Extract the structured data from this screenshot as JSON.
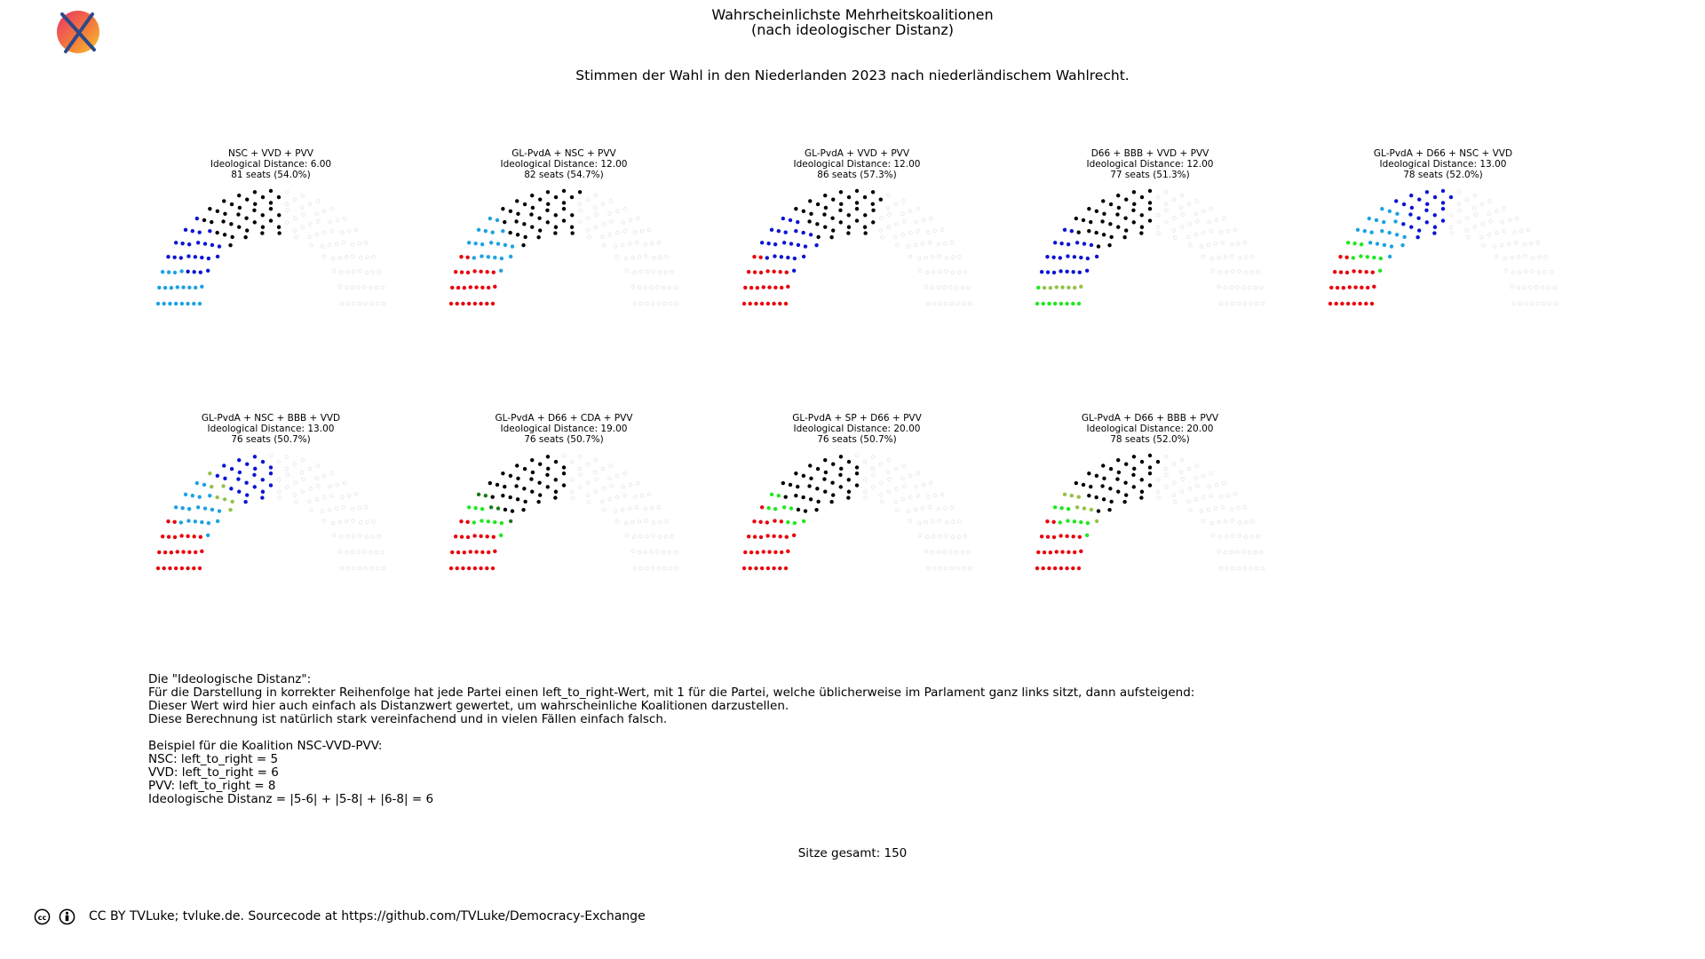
{
  "header": {
    "title_line1": "Wahrscheinlichste Mehrheitskoalitionen",
    "title_line2": "(nach ideologischer Distanz)",
    "subtitle": "Stimmen der Wahl in den Niederlanden 2023 nach niederländischem Wahlrecht."
  },
  "chart_data": [
    {
      "type": "parliament",
      "title": "NSC + VVD + PVV",
      "distance_label": "Ideological Distance: 6.00",
      "seats_label": "81 seats (54.0%)",
      "segments": [
        {
          "party": "NSC",
          "seats": 20,
          "color": "#1ca2e2"
        },
        {
          "party": "VVD",
          "seats": 24,
          "color": "#0a14d2"
        },
        {
          "party": "PVV",
          "seats": 37,
          "color": "#000000"
        }
      ]
    },
    {
      "type": "parliament",
      "title": "GL-PvdA + NSC + PVV",
      "distance_label": "Ideological Distance: 12.00",
      "seats_label": "82 seats (54.7%)",
      "segments": [
        {
          "party": "GL-PvdA",
          "seats": 25,
          "color": "#e8000b"
        },
        {
          "party": "NSC",
          "seats": 20,
          "color": "#1ca2e2"
        },
        {
          "party": "PVV",
          "seats": 37,
          "color": "#000000"
        }
      ]
    },
    {
      "type": "parliament",
      "title": "GL-PvdA + VVD + PVV",
      "distance_label": "Ideological Distance: 12.00",
      "seats_label": "86 seats (57.3%)",
      "segments": [
        {
          "party": "GL-PvdA",
          "seats": 25,
          "color": "#e8000b"
        },
        {
          "party": "VVD",
          "seats": 24,
          "color": "#0a14d2"
        },
        {
          "party": "PVV",
          "seats": 37,
          "color": "#000000"
        }
      ]
    },
    {
      "type": "parliament",
      "title": "D66 + BBB + VVD + PVV",
      "distance_label": "Ideological Distance: 12.00",
      "seats_label": "77 seats (51.3%)",
      "segments": [
        {
          "party": "D66",
          "seats": 9,
          "color": "#1ee81e"
        },
        {
          "party": "BBB",
          "seats": 7,
          "color": "#94c24a"
        },
        {
          "party": "VVD",
          "seats": 24,
          "color": "#0a14d2"
        },
        {
          "party": "PVV",
          "seats": 37,
          "color": "#000000"
        }
      ]
    },
    {
      "type": "parliament",
      "title": "GL-PvdA + D66 + NSC + VVD",
      "distance_label": "Ideological Distance: 13.00",
      "seats_label": "78 seats (52.0%)",
      "segments": [
        {
          "party": "GL-PvdA",
          "seats": 25,
          "color": "#e8000b"
        },
        {
          "party": "D66",
          "seats": 9,
          "color": "#1ee81e"
        },
        {
          "party": "NSC",
          "seats": 20,
          "color": "#1ca2e2"
        },
        {
          "party": "VVD",
          "seats": 24,
          "color": "#0a14d2"
        }
      ]
    },
    {
      "type": "parliament",
      "title": "GL-PvdA + NSC + BBB + VVD",
      "distance_label": "Ideological Distance: 13.00",
      "seats_label": "76 seats (50.7%)",
      "segments": [
        {
          "party": "GL-PvdA",
          "seats": 25,
          "color": "#e8000b"
        },
        {
          "party": "NSC",
          "seats": 20,
          "color": "#1ca2e2"
        },
        {
          "party": "BBB",
          "seats": 7,
          "color": "#94c24a"
        },
        {
          "party": "VVD",
          "seats": 24,
          "color": "#0a14d2"
        }
      ]
    },
    {
      "type": "parliament",
      "title": "GL-PvdA + D66 + CDA + PVV",
      "distance_label": "Ideological Distance: 19.00",
      "seats_label": "76 seats (50.7%)",
      "segments": [
        {
          "party": "GL-PvdA",
          "seats": 25,
          "color": "#e8000b"
        },
        {
          "party": "D66",
          "seats": 9,
          "color": "#1ee81e"
        },
        {
          "party": "CDA",
          "seats": 5,
          "color": "#1a7a1a"
        },
        {
          "party": "PVV",
          "seats": 37,
          "color": "#000000"
        }
      ]
    },
    {
      "type": "parliament",
      "title": "GL-PvdA + SP + D66 + PVV",
      "distance_label": "Ideological Distance: 20.00",
      "seats_label": "76 seats (50.7%)",
      "segments": [
        {
          "party": "GL-PvdA",
          "seats": 25,
          "color": "#e8000b"
        },
        {
          "party": "SP",
          "seats": 5,
          "color": "#e8000b"
        },
        {
          "party": "D66",
          "seats": 9,
          "color": "#1ee81e"
        },
        {
          "party": "PVV",
          "seats": 37,
          "color": "#000000"
        }
      ]
    },
    {
      "type": "parliament",
      "title": "GL-PvdA + D66 + BBB + PVV",
      "distance_label": "Ideological Distance: 20.00",
      "seats_label": "78 seats (52.0%)",
      "segments": [
        {
          "party": "GL-PvdA",
          "seats": 25,
          "color": "#e8000b"
        },
        {
          "party": "D66",
          "seats": 9,
          "color": "#1ee81e"
        },
        {
          "party": "BBB",
          "seats": 7,
          "color": "#94c24a"
        },
        {
          "party": "PVV",
          "seats": 37,
          "color": "#000000"
        }
      ]
    }
  ],
  "total_seats": 150,
  "empty_seat_color": "#e6e6e6",
  "notes": {
    "lines": [
      "Die \"Ideologische Distanz\":",
      "Für die Darstellung in korrekter Reihenfolge hat jede Partei einen left_to_right-Wert, mit 1 für die Partei, welche üblicherweise im Parlament ganz links sitzt, dann aufsteigend:",
      "Dieser Wert wird hier auch einfach als Distanzwert gewertet, um wahrscheinliche Koalitionen darzustellen.",
      "Diese Berechnung ist natürlich stark vereinfachend und in vielen Fällen einfach falsch.",
      "",
      "Beispiel für die Koalition NSC-VVD-PVV:",
      "NSC: left_to_right = 5",
      "VVD: left_to_right = 6",
      "PVV: left_to_right = 8",
      "Ideologische Distanz = |5-6| + |5-8| + |6-8| = 6"
    ]
  },
  "total_label": "Sitze gesamt: 150",
  "footer": {
    "text": "CC BY TVLuke; tvluke.de. Sourcecode at https://github.com/TVLuke/Democracy-Exchange",
    "icons": [
      "cc-icon",
      "by-icon"
    ]
  },
  "logo": {
    "icon": "crossed-out-ballot-logo",
    "colors": [
      "#e84a5f",
      "#f5a623",
      "#2c4a8a"
    ]
  }
}
